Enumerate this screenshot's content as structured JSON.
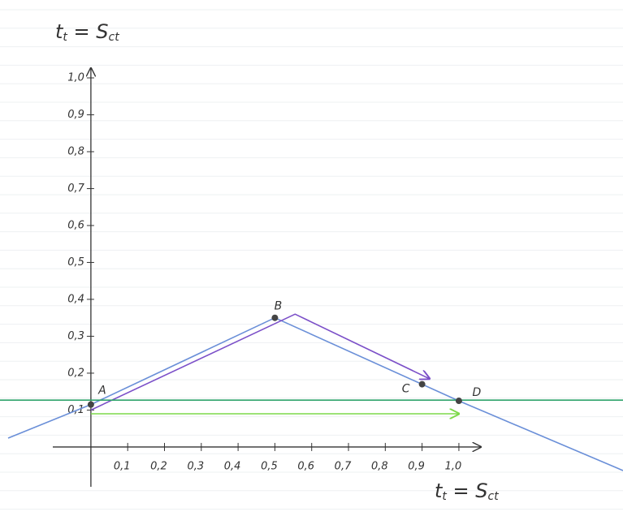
{
  "chart_data": {
    "type": "line",
    "xlim": [
      -0.247,
      1.446
    ],
    "ylim": [
      -0.187,
      1.211
    ],
    "xticks": [
      {
        "value": 0.1,
        "label": "0,1"
      },
      {
        "value": 0.2,
        "label": "0,2"
      },
      {
        "value": 0.3,
        "label": "0,3"
      },
      {
        "value": 0.4,
        "label": "0,4"
      },
      {
        "value": 0.5,
        "label": "0,5"
      },
      {
        "value": 0.6,
        "label": "0,6"
      },
      {
        "value": 0.7,
        "label": "0,7"
      },
      {
        "value": 0.8,
        "label": "0,8"
      },
      {
        "value": 0.9,
        "label": "0,9"
      },
      {
        "value": 1.0,
        "label": "1,0"
      }
    ],
    "yticks": [
      {
        "value": 0.1,
        "label": "0,1"
      },
      {
        "value": 0.2,
        "label": "0,2"
      },
      {
        "value": 0.3,
        "label": "0,3"
      },
      {
        "value": 0.4,
        "label": "0,4"
      },
      {
        "value": 0.5,
        "label": "0,5"
      },
      {
        "value": 0.6,
        "label": "0,6"
      },
      {
        "value": 0.7,
        "label": "0,7"
      },
      {
        "value": 0.8,
        "label": "0,8"
      },
      {
        "value": 0.9,
        "label": "0,9"
      },
      {
        "value": 1.0,
        "label": "1,0"
      }
    ],
    "xlabel": [
      {
        "text": "t"
      },
      {
        "text": "t",
        "sub": true
      },
      {
        "text": " = S"
      },
      {
        "text": "ct",
        "sub": true
      }
    ],
    "ylabel": [
      {
        "text": "t"
      },
      {
        "text": "t",
        "sub": true
      },
      {
        "text": " = S"
      },
      {
        "text": "ct",
        "sub": true
      }
    ],
    "series": [
      {
        "color": "#6a8fd8",
        "x": [
          -0.225,
          0,
          0.5,
          1.0,
          1.446
        ],
        "values": [
          0.024,
          0.115,
          0.35,
          0.125,
          -0.064
        ],
        "arrow": false
      },
      {
        "color": "#7b4fc8",
        "x": [
          0,
          0.555,
          0.92
        ],
        "values": [
          0.1,
          0.36,
          0.185
        ],
        "arrow": true
      },
      {
        "color": "#2fa36b",
        "x": [
          -0.247,
          1.446
        ],
        "values": [
          0.127,
          0.127
        ],
        "arrow": false
      },
      {
        "color": "#7dd84a",
        "x": [
          0,
          1.0
        ],
        "values": [
          0.09,
          0.09
        ],
        "arrow": true
      }
    ],
    "points": [
      {
        "label": "A",
        "x": 0,
        "y": 0.115
      },
      {
        "label": "B",
        "x": 0.5,
        "y": 0.35
      },
      {
        "label": "C",
        "x": 0.9,
        "y": 0.17
      },
      {
        "label": "D",
        "x": 1.0,
        "y": 0.125
      }
    ]
  }
}
